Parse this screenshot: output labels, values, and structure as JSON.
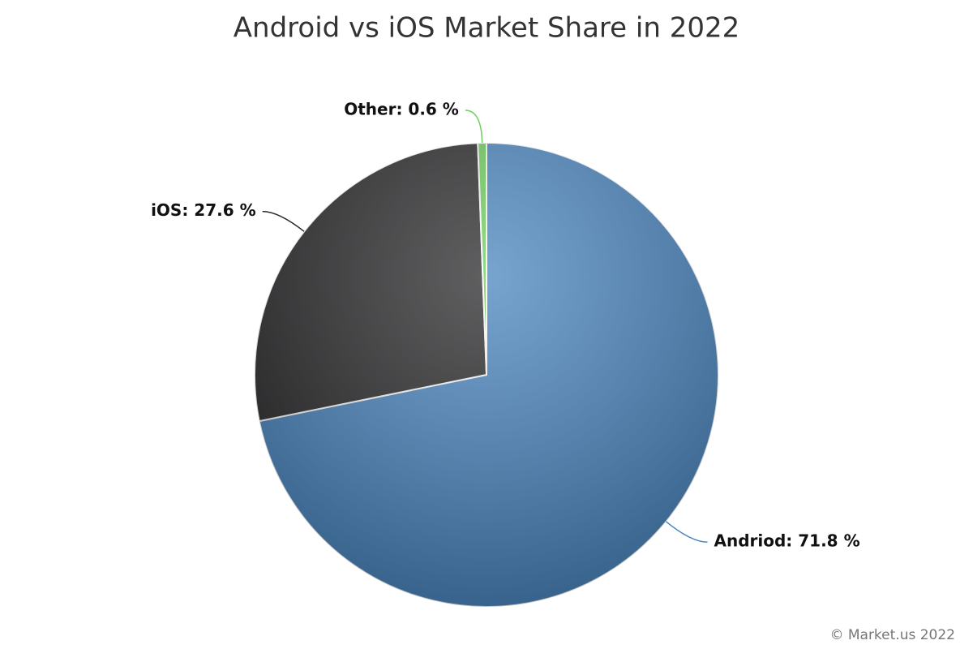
{
  "chart_data": {
    "type": "pie",
    "title": "Android vs iOS Market Share in 2022",
    "values": [
      71.8,
      27.6,
      0.6
    ],
    "value_labels": [
      "Andriod: 71.8 %",
      "iOS: 27.6 %",
      "Other: 0.6 %"
    ],
    "colors": [
      "#4a86c0",
      "#2a2a2c",
      "#6fcf5f"
    ],
    "credit": "© Market.us 2022"
  }
}
